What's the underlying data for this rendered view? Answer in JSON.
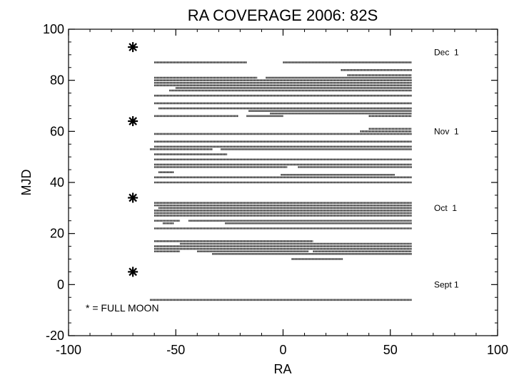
{
  "chart_data": {
    "type": "scatter",
    "title": "RA COVERAGE 2006: 82S",
    "xlabel": "RA",
    "ylabel": "MJD",
    "xlim": [
      -100,
      100
    ],
    "ylim": [
      -20,
      100
    ],
    "xticks": [
      -100,
      -50,
      0,
      50,
      100
    ],
    "yticks": [
      -20,
      0,
      20,
      40,
      60,
      80,
      100
    ],
    "grid": false,
    "full_moon": {
      "ra": -70,
      "mjd": [
        5,
        34,
        64,
        93
      ],
      "marker": "asterisk"
    },
    "legend_note": "* = FULL MOON",
    "month_labels": [
      {
        "text": "Dec  1",
        "mjd": 91
      },
      {
        "text": "Nov  1",
        "mjd": 60
      },
      {
        "text": "Oct  1",
        "mjd": 30
      },
      {
        "text": "Sept 1",
        "mjd": 0
      }
    ],
    "coverage_segments": [
      {
        "mjd": 87,
        "ra": [
          [
            -60,
            -17
          ],
          [
            0,
            60
          ]
        ]
      },
      {
        "mjd": 84,
        "ra": [
          [
            27,
            60
          ]
        ]
      },
      {
        "mjd": 82,
        "ra": [
          [
            30,
            60
          ]
        ]
      },
      {
        "mjd": 81,
        "ra": [
          [
            -60,
            -12
          ],
          [
            -8,
            60
          ]
        ]
      },
      {
        "mjd": 80,
        "ra": [
          [
            -60,
            60
          ]
        ]
      },
      {
        "mjd": 79,
        "ra": [
          [
            -60,
            60
          ]
        ]
      },
      {
        "mjd": 78,
        "ra": [
          [
            -60,
            60
          ]
        ]
      },
      {
        "mjd": 77,
        "ra": [
          [
            -50,
            60
          ]
        ]
      },
      {
        "mjd": 76,
        "ra": [
          [
            -53,
            60
          ]
        ]
      },
      {
        "mjd": 74,
        "ra": [
          [
            -60,
            60
          ]
        ]
      },
      {
        "mjd": 71,
        "ra": [
          [
            -60,
            60
          ]
        ]
      },
      {
        "mjd": 69,
        "ra": [
          [
            -58,
            60
          ]
        ]
      },
      {
        "mjd": 68,
        "ra": [
          [
            -16,
            60
          ]
        ]
      },
      {
        "mjd": 67,
        "ra": [
          [
            -6,
            60
          ]
        ]
      },
      {
        "mjd": 66,
        "ra": [
          [
            -60,
            -21
          ],
          [
            -17,
            0
          ],
          [
            40,
            60
          ]
        ]
      },
      {
        "mjd": 61,
        "ra": [
          [
            40,
            60
          ]
        ]
      },
      {
        "mjd": 60,
        "ra": [
          [
            36,
            60
          ]
        ]
      },
      {
        "mjd": 59,
        "ra": [
          [
            -60,
            60
          ]
        ]
      },
      {
        "mjd": 56,
        "ra": [
          [
            -60,
            60
          ]
        ]
      },
      {
        "mjd": 54,
        "ra": [
          [
            -60,
            60
          ]
        ]
      },
      {
        "mjd": 53,
        "ra": [
          [
            -62,
            -33
          ],
          [
            -29,
            60
          ]
        ]
      },
      {
        "mjd": 51,
        "ra": [
          [
            -60,
            -26
          ]
        ]
      },
      {
        "mjd": 49,
        "ra": [
          [
            -60,
            60
          ]
        ]
      },
      {
        "mjd": 47,
        "ra": [
          [
            -60,
            60
          ]
        ]
      },
      {
        "mjd": 46,
        "ra": [
          [
            -60,
            2
          ],
          [
            7,
            60
          ]
        ]
      },
      {
        "mjd": 44,
        "ra": [
          [
            -58,
            -51
          ]
        ]
      },
      {
        "mjd": 43,
        "ra": [
          [
            -1,
            52
          ]
        ]
      },
      {
        "mjd": 42,
        "ra": [
          [
            -60,
            60
          ]
        ]
      },
      {
        "mjd": 40,
        "ra": [
          [
            -60,
            60
          ]
        ]
      },
      {
        "mjd": 32,
        "ra": [
          [
            -60,
            60
          ]
        ]
      },
      {
        "mjd": 31,
        "ra": [
          [
            -60,
            60
          ]
        ]
      },
      {
        "mjd": 30,
        "ra": [
          [
            -58,
            60
          ]
        ]
      },
      {
        "mjd": 29,
        "ra": [
          [
            -60,
            60
          ]
        ]
      },
      {
        "mjd": 28,
        "ra": [
          [
            -60,
            60
          ]
        ]
      },
      {
        "mjd": 27,
        "ra": [
          [
            -60,
            60
          ]
        ]
      },
      {
        "mjd": 25,
        "ra": [
          [
            -60,
            -48
          ],
          [
            -44,
            60
          ]
        ]
      },
      {
        "mjd": 24,
        "ra": [
          [
            -56,
            -51
          ],
          [
            -27,
            60
          ]
        ]
      },
      {
        "mjd": 22,
        "ra": [
          [
            -60,
            60
          ]
        ]
      },
      {
        "mjd": 17,
        "ra": [
          [
            -60,
            14
          ]
        ]
      },
      {
        "mjd": 16,
        "ra": [
          [
            -48,
            60
          ]
        ]
      },
      {
        "mjd": 15,
        "ra": [
          [
            -60,
            60
          ]
        ]
      },
      {
        "mjd": 14,
        "ra": [
          [
            -60,
            60
          ]
        ]
      },
      {
        "mjd": 13,
        "ra": [
          [
            -60,
            -48
          ],
          [
            -40,
            12
          ],
          [
            14,
            60
          ]
        ]
      },
      {
        "mjd": 12,
        "ra": [
          [
            -33,
            60
          ]
        ]
      },
      {
        "mjd": 10,
        "ra": [
          [
            4,
            28
          ]
        ]
      },
      {
        "mjd": -6,
        "ra": [
          [
            -62,
            60
          ]
        ]
      }
    ]
  }
}
